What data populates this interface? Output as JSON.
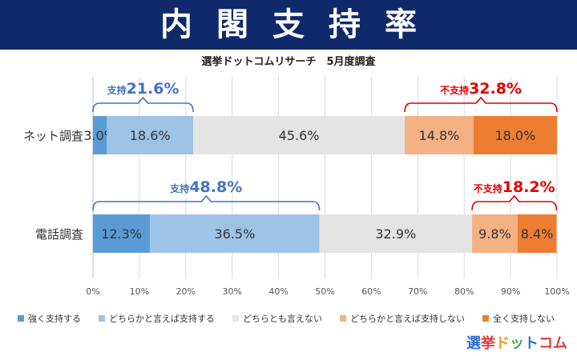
{
  "header": {
    "title": "内閣支持率"
  },
  "chart_data": {
    "type": "bar",
    "subtitle": "選挙ドットコムリサーチ　5月度調査",
    "orientation": "horizontal-stacked",
    "categories": [
      "ネット調査",
      "電話調査"
    ],
    "series": [
      {
        "name": "強く支持する",
        "color": "#5b9bd5",
        "values": [
          3.0,
          12.3
        ]
      },
      {
        "name": "どちらかと言えば支持する",
        "color": "#9dc3e6",
        "values": [
          18.6,
          36.5
        ]
      },
      {
        "name": "どちらとも言えない",
        "color": "#e4e4e4",
        "values": [
          45.6,
          32.9
        ]
      },
      {
        "name": "どちらかと言えば支持しない",
        "color": "#f4b183",
        "values": [
          14.8,
          9.8
        ]
      },
      {
        "name": "全く支持しない",
        "color": "#ed7d31",
        "values": [
          18.0,
          8.4
        ]
      }
    ],
    "data_labels": [
      [
        "3.0%",
        "18.6%",
        "45.6%",
        "14.8%",
        "18.0%"
      ],
      [
        "12.3%",
        "36.5%",
        "32.9%",
        "9.8%",
        "8.4%"
      ]
    ],
    "xlim": [
      0,
      100
    ],
    "xticks": [
      "0%",
      "10%",
      "20%",
      "30%",
      "40%",
      "50%",
      "60%",
      "70%",
      "80%",
      "90%",
      "100%"
    ],
    "grid": true,
    "legend_position": "bottom",
    "annotations": [
      {
        "row": 0,
        "side": "support",
        "prefix": "支持",
        "value": "21.6%",
        "color": "#4472c4"
      },
      {
        "row": 0,
        "side": "oppose",
        "prefix": "不支持",
        "value": "32.8%",
        "color": "#e00000"
      },
      {
        "row": 1,
        "side": "support",
        "prefix": "支持",
        "value": "48.8%",
        "color": "#4472c4"
      },
      {
        "row": 1,
        "side": "oppose",
        "prefix": "不支持",
        "value": "18.2%",
        "color": "#e00000"
      }
    ]
  },
  "logo": {
    "chars": [
      "選",
      "挙",
      "ド",
      "ッ",
      "ト",
      "コム"
    ]
  }
}
